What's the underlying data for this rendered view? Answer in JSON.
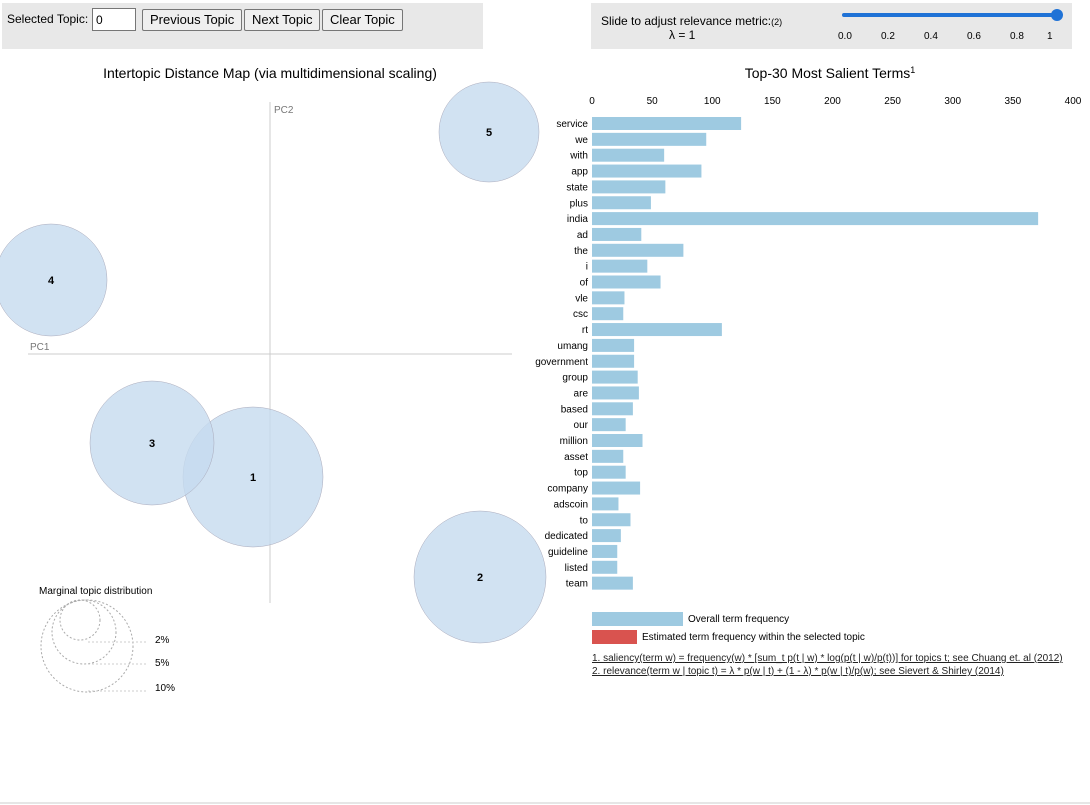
{
  "controls": {
    "selected_topic_label": "Selected Topic:",
    "selected_topic_value": "0",
    "prev_label": "Previous Topic",
    "next_label": "Next Topic",
    "clear_label": "Clear Topic"
  },
  "slider": {
    "label": "Slide to adjust relevance metric:",
    "note": "(2)",
    "lambda_text": "λ = 1",
    "ticks": [
      "0.0",
      "0.2",
      "0.4",
      "0.6",
      "0.8",
      "1"
    ],
    "value": 1.0,
    "color": "#1f72d6"
  },
  "left": {
    "title": "Intertopic Distance Map (via multidimensional scaling)",
    "pc1_label": "PC1",
    "pc2_label": "PC2",
    "topics": [
      "1",
      "2",
      "3",
      "4",
      "5"
    ],
    "circle_color": "#c6dbef",
    "marginal_title": "Marginal topic distribution",
    "marginal_labels": [
      "2%",
      "5%",
      "10%"
    ]
  },
  "right": {
    "title": "Top-30 Most Salient Terms",
    "title_sup": "1",
    "legend_overall": "Overall term frequency",
    "legend_estimated": "Estimated term frequency within the selected topic",
    "footnote1": "1. saliency(term w) = frequency(w) * [sum_t p(t | w) * log(p(t | w)/p(t))] for topics t; see Chuang et. al (2012)",
    "footnote2": "2. relevance(term w | topic t) = λ * p(w | t) + (1 - λ) * p(w | t)/p(w); see Sievert & Shirley (2014)",
    "bar_color": "#9ecae1",
    "estimated_color": "#d9534f"
  },
  "chart_data": {
    "type": "bar",
    "orientation": "horizontal",
    "xlim": [
      0,
      400
    ],
    "xticks": [
      "0",
      "50",
      "100",
      "150",
      "200",
      "250",
      "300",
      "350",
      "400"
    ],
    "categories": [
      "service",
      "we",
      "with",
      "app",
      "state",
      "plus",
      "india",
      "ad",
      "the",
      "i",
      "of",
      "vle",
      "csc",
      "rt",
      "umang",
      "government",
      "group",
      "are",
      "based",
      "our",
      "million",
      "asset",
      "top",
      "company",
      "adscoin",
      "to",
      "dedicated",
      "guideline",
      "listed",
      "team"
    ],
    "series": [
      {
        "name": "Overall term frequency",
        "values": [
          124,
          95,
          60,
          91,
          61,
          49,
          371,
          41,
          76,
          46,
          57,
          27,
          26,
          108,
          35,
          35,
          38,
          39,
          34,
          28,
          42,
          26,
          28,
          40,
          22,
          32,
          24,
          21,
          21,
          34
        ]
      }
    ]
  }
}
